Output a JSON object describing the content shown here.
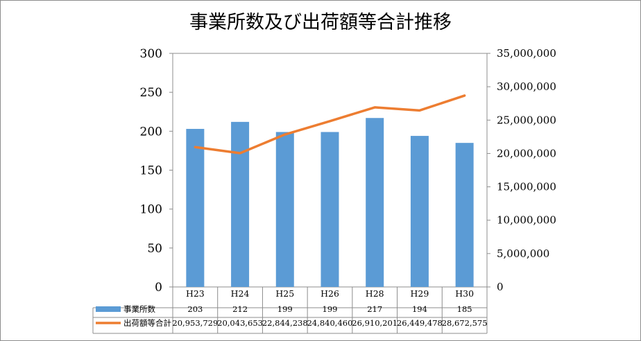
{
  "chart_data": {
    "type": "bar",
    "title": "事業所数及び出荷額等合計推移",
    "categories": [
      "H23",
      "H24",
      "H25",
      "H26",
      "H28",
      "H29",
      "H30"
    ],
    "series": [
      {
        "name": "事業所数",
        "type": "bar",
        "axis": "left",
        "color": "#5b9bd5",
        "values": [
          203,
          212,
          199,
          199,
          217,
          194,
          185
        ],
        "table_values": [
          "203",
          "212",
          "199",
          "199",
          "217",
          "194",
          "185"
        ]
      },
      {
        "name": "出荷額等合計",
        "type": "line",
        "axis": "right",
        "color": "#ed7d31",
        "values": [
          20953729,
          20043653,
          22844238,
          24840460,
          26910201,
          26449478,
          28672575
        ],
        "table_values": [
          "20,953,729",
          "20,043,653",
          "22,844,238",
          "24,840,460",
          "26,910,201",
          "26,449,478",
          "28,672,575"
        ]
      }
    ],
    "y_left": {
      "min": 0,
      "max": 300,
      "ticks": [
        "0",
        "50",
        "100",
        "150",
        "200",
        "250",
        "300"
      ]
    },
    "y_right": {
      "min": 0,
      "max": 35000000,
      "ticks": [
        "0",
        "5,000,000",
        "10,000,000",
        "15,000,000",
        "20,000,000",
        "25,000,000",
        "30,000,000",
        "35,000,000"
      ]
    },
    "grid": false,
    "legend": "data-table"
  }
}
